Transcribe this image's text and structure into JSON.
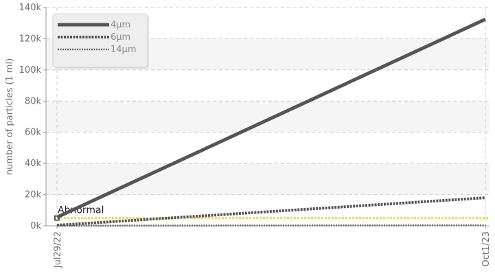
{
  "chart_data": {
    "type": "line",
    "title": "",
    "xlabel": "",
    "ylabel": "number of particles (1 ml)",
    "x": [
      "Jul29/22",
      "Oct1/23"
    ],
    "xticks": [
      "Jul29/22",
      "Oct1/23"
    ],
    "yticks": [
      "0k",
      "20k",
      "40k",
      "60k",
      "80k",
      "100k",
      "120k",
      "140k"
    ],
    "ylim": [
      0,
      140000
    ],
    "grid": true,
    "legend_position": "top-left",
    "series": [
      {
        "name": "4μm",
        "values": [
          5500,
          132500
        ],
        "color": "#555555",
        "style": "solid"
      },
      {
        "name": "6μm",
        "values": [
          400,
          18000
        ],
        "color": "#555555",
        "style": "dotted-thick"
      },
      {
        "name": "14μm",
        "values": [
          100,
          350
        ],
        "color": "#666666",
        "style": "dotted-thin"
      }
    ],
    "threshold": {
      "label": "Abnormal",
      "value": 5000,
      "color": "#e8c800"
    }
  }
}
